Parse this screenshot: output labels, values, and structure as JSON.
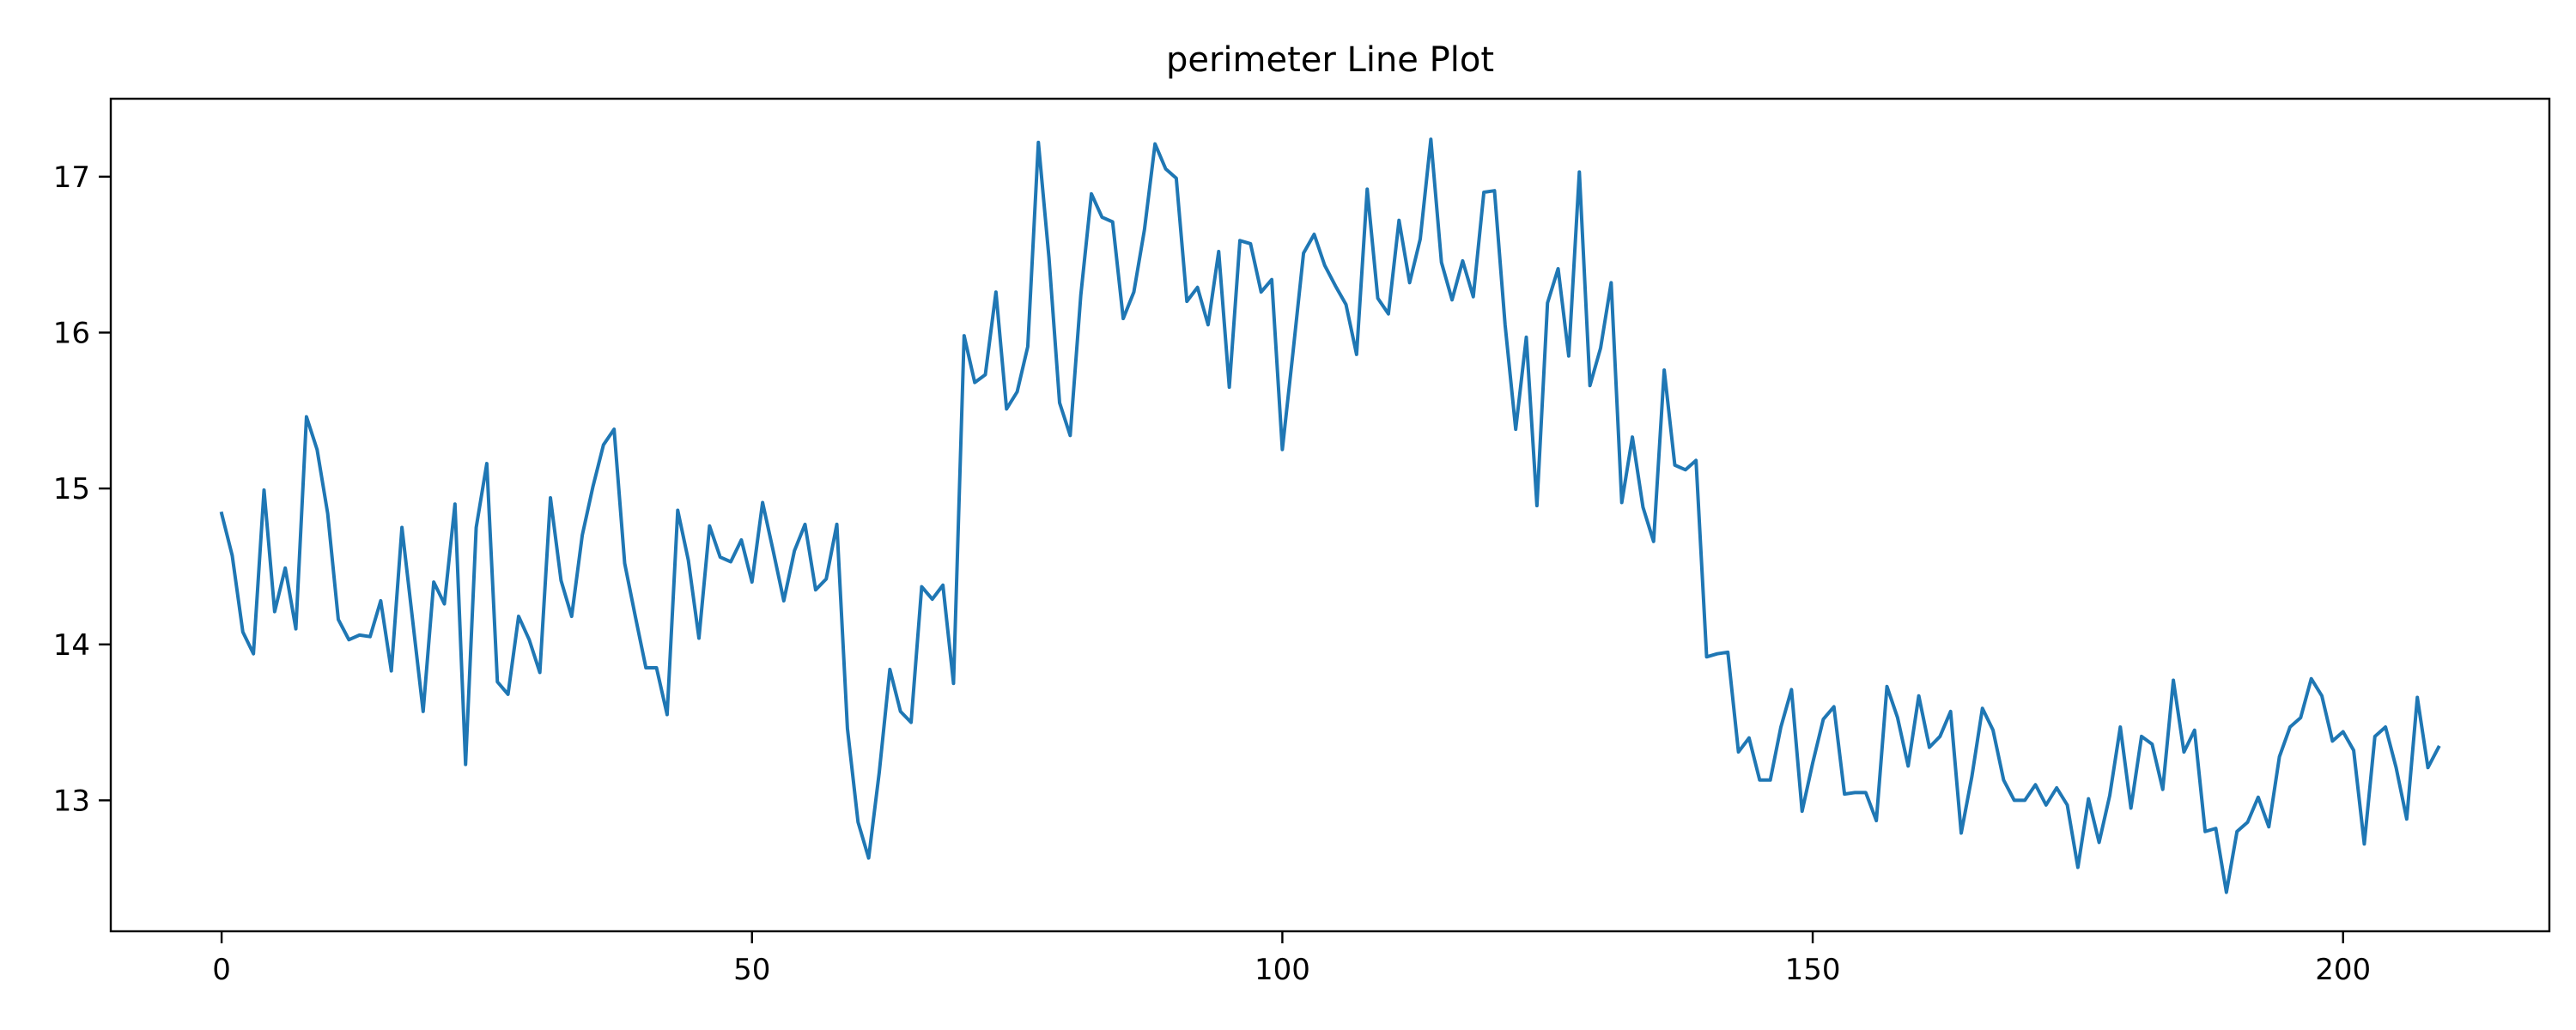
{
  "chart_data": {
    "type": "line",
    "title": "perimeter Line Plot",
    "xlabel": "",
    "ylabel": "",
    "xlim": [
      -10.45,
      219.45
    ],
    "ylim": [
      12.16,
      17.5
    ],
    "x_ticks": [
      0,
      50,
      100,
      150,
      200
    ],
    "y_ticks": [
      13,
      14,
      15,
      16,
      17
    ],
    "grid": false,
    "legend": "none",
    "series": [
      {
        "color": "#1f77b4",
        "x_start": 0,
        "values": [
          14.84,
          14.57,
          14.08,
          13.94,
          14.99,
          14.21,
          14.49,
          14.1,
          15.46,
          15.25,
          14.84,
          14.16,
          14.03,
          14.06,
          14.05,
          14.28,
          13.83,
          14.75,
          14.16,
          13.57,
          14.4,
          14.26,
          14.9,
          13.23,
          14.75,
          15.16,
          13.76,
          13.68,
          14.18,
          14.03,
          13.82,
          14.94,
          14.41,
          14.18,
          14.7,
          15.01,
          15.28,
          15.38,
          14.52,
          14.18,
          13.85,
          13.85,
          13.55,
          14.86,
          14.54,
          14.04,
          14.76,
          14.56,
          14.53,
          14.67,
          14.4,
          14.91,
          14.6,
          14.28,
          14.6,
          14.77,
          14.35,
          14.42,
          14.77,
          13.46,
          12.86,
          12.63,
          13.18,
          13.84,
          13.57,
          13.5,
          14.37,
          14.29,
          14.38,
          13.75,
          15.98,
          15.68,
          15.73,
          16.26,
          15.51,
          15.62,
          15.91,
          17.22,
          16.48,
          15.55,
          15.34,
          16.24,
          16.89,
          16.74,
          16.71,
          16.09,
          16.26,
          16.66,
          17.21,
          17.05,
          16.99,
          16.2,
          16.29,
          16.05,
          16.52,
          15.65,
          16.59,
          16.57,
          16.26,
          16.34,
          15.25,
          15.87,
          16.51,
          16.63,
          16.43,
          16.3,
          16.18,
          15.86,
          16.92,
          16.22,
          16.12,
          16.72,
          16.32,
          16.6,
          17.24,
          16.45,
          16.21,
          16.46,
          16.23,
          16.9,
          16.91,
          16.05,
          15.38,
          15.97,
          14.89,
          16.19,
          16.41,
          15.85,
          17.03,
          15.66,
          15.9,
          16.32,
          14.91,
          15.33,
          14.88,
          14.66,
          15.76,
          15.15,
          15.12,
          15.18,
          13.92,
          13.94,
          13.95,
          13.31,
          13.4,
          13.13,
          13.13,
          13.47,
          13.71,
          12.93,
          13.24,
          13.52,
          13.6,
          13.04,
          13.05,
          13.05,
          12.87,
          13.73,
          13.53,
          13.22,
          13.67,
          13.34,
          13.41,
          13.57,
          12.79,
          13.15,
          13.59,
          13.45,
          13.13,
          13.0,
          13.0,
          13.1,
          12.97,
          13.08,
          12.97,
          12.57,
          13.01,
          12.73,
          13.03,
          13.47,
          12.95,
          13.41,
          13.36,
          13.07,
          13.77,
          13.31,
          13.45,
          12.8,
          12.82,
          12.41,
          12.8,
          12.86,
          13.02,
          12.83,
          13.28,
          13.47,
          13.53,
          13.78,
          13.67,
          13.38,
          13.44,
          13.32,
          12.72,
          13.41,
          13.47,
          13.21,
          12.88,
          13.66,
          13.21,
          13.34
        ]
      }
    ]
  }
}
